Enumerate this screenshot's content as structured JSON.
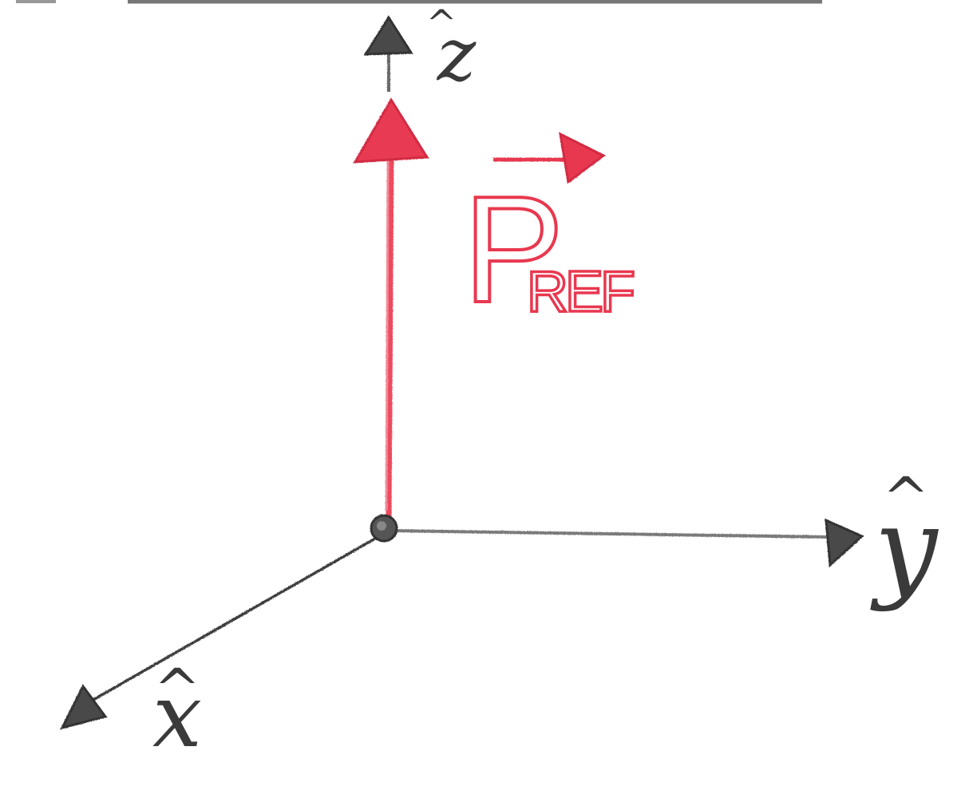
{
  "diagram": {
    "axes": [
      {
        "id": "z",
        "label": "z",
        "hat": "^",
        "color": "#3a3a3a"
      },
      {
        "id": "y",
        "label": "y",
        "hat": "^",
        "color": "#3a3a3a"
      },
      {
        "id": "x",
        "label": "x",
        "hat": "^",
        "color": "#3a3a3a"
      }
    ],
    "vector": {
      "label_main": "P",
      "label_sub": "REF",
      "arrow_over": true,
      "direction": "+z",
      "color": "#e8384f"
    },
    "origin": {
      "color": "#3a3a3a"
    }
  }
}
